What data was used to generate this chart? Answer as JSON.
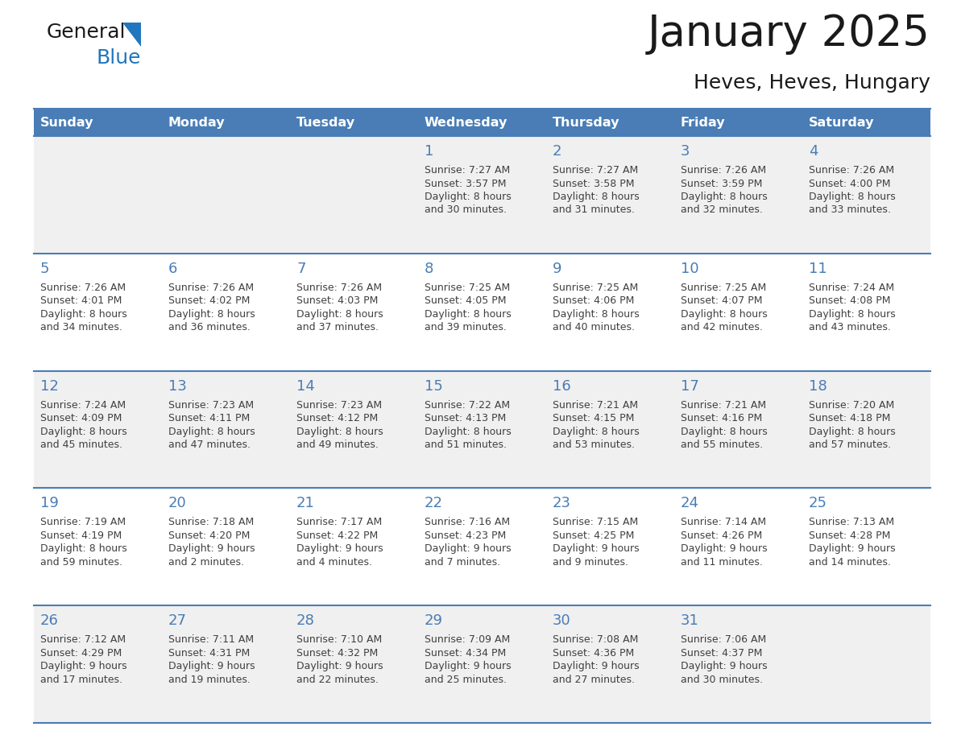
{
  "title": "January 2025",
  "subtitle": "Heves, Heves, Hungary",
  "days_of_week": [
    "Sunday",
    "Monday",
    "Tuesday",
    "Wednesday",
    "Thursday",
    "Friday",
    "Saturday"
  ],
  "header_bg": "#4A7DB5",
  "header_text": "#FFFFFF",
  "row_bg_odd": "#F0F0F0",
  "row_bg_even": "#FFFFFF",
  "separator_color": "#4A7DB5",
  "day_number_color": "#4A7DB5",
  "cell_text_color": "#404040",
  "title_color": "#1a1a1a",
  "logo_general_color": "#1a1a1a",
  "logo_blue_color": "#2176BD",
  "logo_triangle_color": "#2176BD",
  "weeks": [
    {
      "days": [
        {
          "day": null,
          "sunrise": null,
          "sunset": null,
          "daylight_h": null,
          "daylight_m": null
        },
        {
          "day": null,
          "sunrise": null,
          "sunset": null,
          "daylight_h": null,
          "daylight_m": null
        },
        {
          "day": null,
          "sunrise": null,
          "sunset": null,
          "daylight_h": null,
          "daylight_m": null
        },
        {
          "day": 1,
          "sunrise": "7:27 AM",
          "sunset": "3:57 PM",
          "daylight_h": "8 hours",
          "daylight_m": "and 30 minutes."
        },
        {
          "day": 2,
          "sunrise": "7:27 AM",
          "sunset": "3:58 PM",
          "daylight_h": "8 hours",
          "daylight_m": "and 31 minutes."
        },
        {
          "day": 3,
          "sunrise": "7:26 AM",
          "sunset": "3:59 PM",
          "daylight_h": "8 hours",
          "daylight_m": "and 32 minutes."
        },
        {
          "day": 4,
          "sunrise": "7:26 AM",
          "sunset": "4:00 PM",
          "daylight_h": "8 hours",
          "daylight_m": "and 33 minutes."
        }
      ]
    },
    {
      "days": [
        {
          "day": 5,
          "sunrise": "7:26 AM",
          "sunset": "4:01 PM",
          "daylight_h": "8 hours",
          "daylight_m": "and 34 minutes."
        },
        {
          "day": 6,
          "sunrise": "7:26 AM",
          "sunset": "4:02 PM",
          "daylight_h": "8 hours",
          "daylight_m": "and 36 minutes."
        },
        {
          "day": 7,
          "sunrise": "7:26 AM",
          "sunset": "4:03 PM",
          "daylight_h": "8 hours",
          "daylight_m": "and 37 minutes."
        },
        {
          "day": 8,
          "sunrise": "7:25 AM",
          "sunset": "4:05 PM",
          "daylight_h": "8 hours",
          "daylight_m": "and 39 minutes."
        },
        {
          "day": 9,
          "sunrise": "7:25 AM",
          "sunset": "4:06 PM",
          "daylight_h": "8 hours",
          "daylight_m": "and 40 minutes."
        },
        {
          "day": 10,
          "sunrise": "7:25 AM",
          "sunset": "4:07 PM",
          "daylight_h": "8 hours",
          "daylight_m": "and 42 minutes."
        },
        {
          "day": 11,
          "sunrise": "7:24 AM",
          "sunset": "4:08 PM",
          "daylight_h": "8 hours",
          "daylight_m": "and 43 minutes."
        }
      ]
    },
    {
      "days": [
        {
          "day": 12,
          "sunrise": "7:24 AM",
          "sunset": "4:09 PM",
          "daylight_h": "8 hours",
          "daylight_m": "and 45 minutes."
        },
        {
          "day": 13,
          "sunrise": "7:23 AM",
          "sunset": "4:11 PM",
          "daylight_h": "8 hours",
          "daylight_m": "and 47 minutes."
        },
        {
          "day": 14,
          "sunrise": "7:23 AM",
          "sunset": "4:12 PM",
          "daylight_h": "8 hours",
          "daylight_m": "and 49 minutes."
        },
        {
          "day": 15,
          "sunrise": "7:22 AM",
          "sunset": "4:13 PM",
          "daylight_h": "8 hours",
          "daylight_m": "and 51 minutes."
        },
        {
          "day": 16,
          "sunrise": "7:21 AM",
          "sunset": "4:15 PM",
          "daylight_h": "8 hours",
          "daylight_m": "and 53 minutes."
        },
        {
          "day": 17,
          "sunrise": "7:21 AM",
          "sunset": "4:16 PM",
          "daylight_h": "8 hours",
          "daylight_m": "and 55 minutes."
        },
        {
          "day": 18,
          "sunrise": "7:20 AM",
          "sunset": "4:18 PM",
          "daylight_h": "8 hours",
          "daylight_m": "and 57 minutes."
        }
      ]
    },
    {
      "days": [
        {
          "day": 19,
          "sunrise": "7:19 AM",
          "sunset": "4:19 PM",
          "daylight_h": "8 hours",
          "daylight_m": "and 59 minutes."
        },
        {
          "day": 20,
          "sunrise": "7:18 AM",
          "sunset": "4:20 PM",
          "daylight_h": "9 hours",
          "daylight_m": "and 2 minutes."
        },
        {
          "day": 21,
          "sunrise": "7:17 AM",
          "sunset": "4:22 PM",
          "daylight_h": "9 hours",
          "daylight_m": "and 4 minutes."
        },
        {
          "day": 22,
          "sunrise": "7:16 AM",
          "sunset": "4:23 PM",
          "daylight_h": "9 hours",
          "daylight_m": "and 7 minutes."
        },
        {
          "day": 23,
          "sunrise": "7:15 AM",
          "sunset": "4:25 PM",
          "daylight_h": "9 hours",
          "daylight_m": "and 9 minutes."
        },
        {
          "day": 24,
          "sunrise": "7:14 AM",
          "sunset": "4:26 PM",
          "daylight_h": "9 hours",
          "daylight_m": "and 11 minutes."
        },
        {
          "day": 25,
          "sunrise": "7:13 AM",
          "sunset": "4:28 PM",
          "daylight_h": "9 hours",
          "daylight_m": "and 14 minutes."
        }
      ]
    },
    {
      "days": [
        {
          "day": 26,
          "sunrise": "7:12 AM",
          "sunset": "4:29 PM",
          "daylight_h": "9 hours",
          "daylight_m": "and 17 minutes."
        },
        {
          "day": 27,
          "sunrise": "7:11 AM",
          "sunset": "4:31 PM",
          "daylight_h": "9 hours",
          "daylight_m": "and 19 minutes."
        },
        {
          "day": 28,
          "sunrise": "7:10 AM",
          "sunset": "4:32 PM",
          "daylight_h": "9 hours",
          "daylight_m": "and 22 minutes."
        },
        {
          "day": 29,
          "sunrise": "7:09 AM",
          "sunset": "4:34 PM",
          "daylight_h": "9 hours",
          "daylight_m": "and 25 minutes."
        },
        {
          "day": 30,
          "sunrise": "7:08 AM",
          "sunset": "4:36 PM",
          "daylight_h": "9 hours",
          "daylight_m": "and 27 minutes."
        },
        {
          "day": 31,
          "sunrise": "7:06 AM",
          "sunset": "4:37 PM",
          "daylight_h": "9 hours",
          "daylight_m": "and 30 minutes."
        },
        {
          "day": null,
          "sunrise": null,
          "sunset": null,
          "daylight_h": null,
          "daylight_m": null
        }
      ]
    }
  ]
}
